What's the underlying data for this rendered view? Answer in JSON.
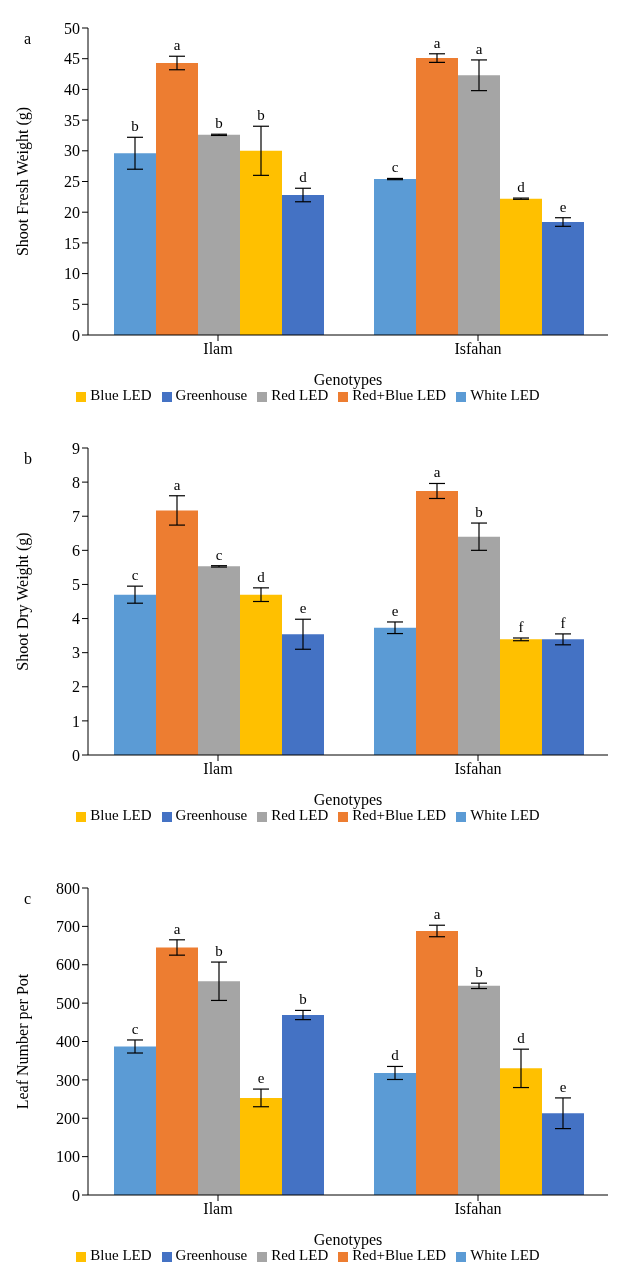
{
  "chart_data": [
    {
      "type": "bar",
      "title": "a",
      "xlabel": "Genotypes",
      "ylabel": "Shoot Fresh Weight (g)",
      "categories": [
        "Ilam",
        "Isfahan"
      ],
      "ylim": [
        0,
        50
      ],
      "yticks": [
        0,
        5,
        10,
        15,
        20,
        25,
        30,
        35,
        40,
        45,
        50
      ],
      "legend": "bottom",
      "series": [
        {
          "name": "White LED",
          "color": "#5b9bd5",
          "values": [
            29.6,
            25.4
          ],
          "errors": [
            2.6,
            0.1
          ],
          "value_labels": [
            "b",
            "c"
          ]
        },
        {
          "name": "Red+Blue LED",
          "color": "#ed7d31",
          "values": [
            44.3,
            45.1
          ],
          "errors": [
            1.1,
            0.7
          ],
          "value_labels": [
            "a",
            "a"
          ]
        },
        {
          "name": "Red LED",
          "color": "#a5a5a5",
          "values": [
            32.6,
            42.3
          ],
          "errors": [
            0.1,
            2.5
          ],
          "value_labels": [
            "b",
            "a"
          ]
        },
        {
          "name": "Blue LED",
          "color": "#ffc000",
          "values": [
            30,
            22.2
          ],
          "errors": [
            4,
            0.1
          ],
          "value_labels": [
            "b",
            "d"
          ]
        },
        {
          "name": "Greenhouse",
          "color": "#4472c4",
          "values": [
            22.8,
            18.4
          ],
          "errors": [
            1.1,
            0.7
          ],
          "value_labels": [
            "d",
            "e"
          ]
        }
      ]
    },
    {
      "type": "bar",
      "title": "b",
      "xlabel": "Genotypes",
      "ylabel": "Shoot Dry Weight (g)",
      "categories": [
        "Ilam",
        "Isfahan"
      ],
      "ylim": [
        0,
        9
      ],
      "yticks": [
        0,
        1,
        2,
        3,
        4,
        5,
        6,
        7,
        8,
        9
      ],
      "legend": "bottom",
      "series": [
        {
          "name": "White LED",
          "color": "#5b9bd5",
          "values": [
            4.7,
            3.73
          ],
          "errors": [
            0.25,
            0.17
          ],
          "value_labels": [
            "c",
            "e"
          ]
        },
        {
          "name": "Red+Blue LED",
          "color": "#ed7d31",
          "values": [
            7.17,
            7.74
          ],
          "errors": [
            0.43,
            0.22
          ],
          "value_labels": [
            "a",
            "a"
          ]
        },
        {
          "name": "Red LED",
          "color": "#a5a5a5",
          "values": [
            5.53,
            6.4
          ],
          "errors": [
            0.02,
            0.4
          ],
          "value_labels": [
            "c",
            "b"
          ]
        },
        {
          "name": "Blue LED",
          "color": "#ffc000",
          "values": [
            4.7,
            3.39
          ],
          "errors": [
            0.2,
            0.04
          ],
          "value_labels": [
            "d",
            "f"
          ]
        },
        {
          "name": "Greenhouse",
          "color": "#4472c4",
          "values": [
            3.54,
            3.39
          ],
          "errors": [
            0.44,
            0.16
          ],
          "value_labels": [
            "e",
            "f"
          ]
        }
      ]
    },
    {
      "type": "bar",
      "title": "c",
      "xlabel": "Genotypes",
      "ylabel": "Leaf Number per Pot",
      "categories": [
        "Ilam",
        "Isfahan"
      ],
      "ylim": [
        0,
        800
      ],
      "yticks": [
        0,
        100,
        200,
        300,
        400,
        500,
        600,
        700,
        800
      ],
      "legend": "bottom",
      "series": [
        {
          "name": "White LED",
          "color": "#5b9bd5",
          "values": [
            387,
            318
          ],
          "errors": [
            17,
            17
          ],
          "value_labels": [
            "c",
            "d"
          ]
        },
        {
          "name": "Red+Blue LED",
          "color": "#ed7d31",
          "values": [
            645,
            688
          ],
          "errors": [
            20,
            15
          ],
          "value_labels": [
            "a",
            "a"
          ]
        },
        {
          "name": "Red LED",
          "color": "#a5a5a5",
          "values": [
            557,
            545
          ],
          "errors": [
            50,
            7
          ],
          "value_labels": [
            "b",
            "b"
          ]
        },
        {
          "name": "Blue LED",
          "color": "#ffc000",
          "values": [
            253,
            330
          ],
          "errors": [
            23,
            50
          ],
          "value_labels": [
            "e",
            "d"
          ]
        },
        {
          "name": "Greenhouse",
          "color": "#4472c4",
          "values": [
            469,
            213
          ],
          "errors": [
            12,
            40
          ],
          "value_labels": [
            "b",
            "e"
          ]
        }
      ]
    }
  ]
}
